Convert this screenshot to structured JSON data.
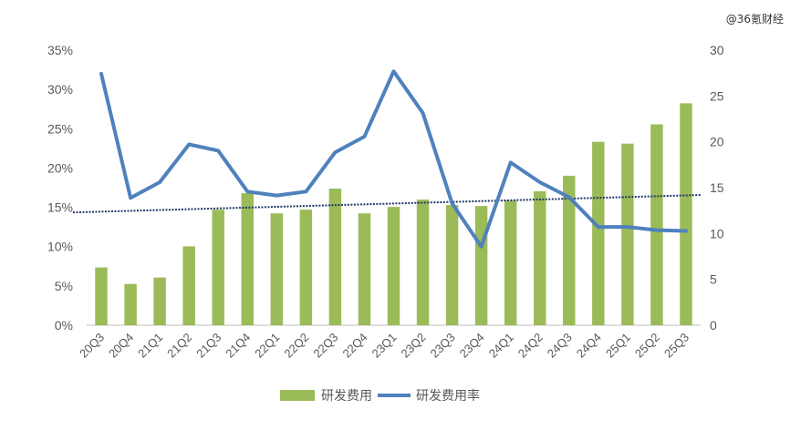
{
  "watermark": "@36氪财经",
  "chart_data": {
    "type": "bar",
    "categories": [
      "20Q3",
      "20Q4",
      "21Q1",
      "21Q2",
      "21Q3",
      "21Q4",
      "22Q1",
      "22Q2",
      "22Q3",
      "22Q4",
      "23Q1",
      "23Q2",
      "23Q3",
      "23Q4",
      "24Q1",
      "24Q2",
      "24Q3",
      "24Q4",
      "25Q1",
      "25Q2",
      "25Q3"
    ],
    "series": [
      {
        "name": "研发费用",
        "type": "bar",
        "axis": "right",
        "color": "#9bbb59",
        "values": [
          6.3,
          4.5,
          5.2,
          8.6,
          12.6,
          14.4,
          12.2,
          12.6,
          14.9,
          12.2,
          12.9,
          13.7,
          13.1,
          13.0,
          13.6,
          14.6,
          16.3,
          20.0,
          19.8,
          21.9,
          24.2
        ]
      },
      {
        "name": "研发费用率",
        "type": "line",
        "axis": "left",
        "color": "#4f81bd",
        "values": [
          32.0,
          16.2,
          18.2,
          23.0,
          22.2,
          17.0,
          16.5,
          17.0,
          22.0,
          24.0,
          32.3,
          27.0,
          15.5,
          10.0,
          20.7,
          18.2,
          16.3,
          12.5,
          12.5,
          12.1,
          12.0
        ]
      }
    ],
    "trendline": {
      "series": "研发费用",
      "axis": "right",
      "color": "#1f3864",
      "style": "dotted",
      "start": 12.3,
      "end": 14.2
    },
    "y_left": {
      "ticks": [
        "0%",
        "5%",
        "10%",
        "15%",
        "20%",
        "25%",
        "30%",
        "35%"
      ],
      "lim": [
        0,
        35
      ]
    },
    "y_right": {
      "ticks": [
        "0",
        "5",
        "10",
        "15",
        "20",
        "25",
        "30"
      ],
      "lim": [
        0,
        30
      ]
    },
    "grid": false,
    "legend_position": "bottom"
  }
}
